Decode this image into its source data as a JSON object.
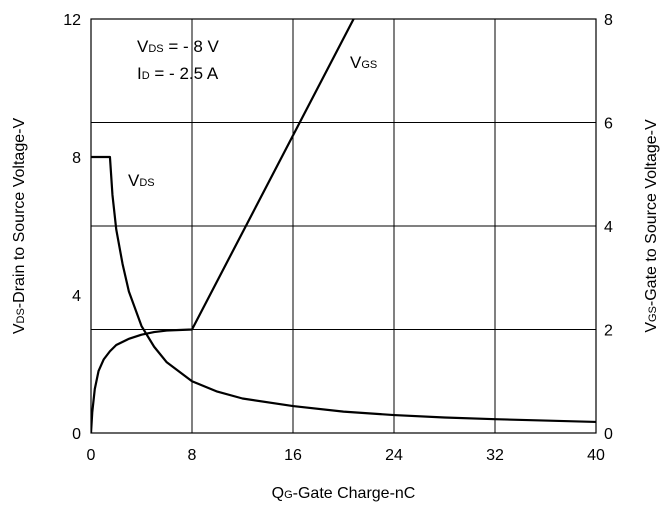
{
  "chart_data": {
    "type": "line",
    "x_axis": {
      "ticks": [
        "0",
        "8",
        "16",
        "24",
        "32",
        "40"
      ],
      "range": [
        0,
        40
      ],
      "label_main": "Q",
      "label_sub": "G",
      "label_rest": "-Gate Charge-nC"
    },
    "y_left": {
      "ticks": [
        "0",
        "4",
        "8",
        "12"
      ],
      "range": [
        0,
        12
      ],
      "label_main": "V",
      "label_sub": "DS",
      "label_rest": "-Drain to Source Voltage-V"
    },
    "y_right": {
      "ticks": [
        "0",
        "2",
        "4",
        "6",
        "8"
      ],
      "range": [
        0,
        8
      ],
      "label_main": "V",
      "label_sub": "GS",
      "label_rest": "-Gate to Source Voltage-V"
    },
    "grid": true,
    "conditions": [
      {
        "main": "V",
        "sub": "DS",
        "rest": " =  - 8 V"
      },
      {
        "main": "I",
        "sub": "D",
        "rest": " =  - 2.5 A"
      }
    ],
    "series": [
      {
        "name_main": "V",
        "name_sub": "DS",
        "axis": "left",
        "x": [
          0,
          1.5,
          1.5,
          1.7,
          2,
          2.5,
          3,
          4,
          5,
          6,
          8,
          10,
          12,
          16,
          20,
          24,
          28,
          32,
          36,
          40
        ],
        "y": [
          8,
          8,
          8,
          6.9,
          5.9,
          4.9,
          4.1,
          3.1,
          2.5,
          2.05,
          1.5,
          1.2,
          1.0,
          0.78,
          0.62,
          0.52,
          0.45,
          0.4,
          0.36,
          0.32
        ]
      },
      {
        "name_main": "V",
        "name_sub": "GS",
        "axis": "right",
        "x": [
          0,
          0.1,
          0.3,
          0.6,
          1,
          1.5,
          2,
          3,
          4,
          5,
          6,
          7,
          8,
          20.8
        ],
        "y": [
          0,
          0.4,
          0.85,
          1.2,
          1.42,
          1.58,
          1.7,
          1.82,
          1.9,
          1.95,
          1.98,
          1.99,
          2.0,
          8
        ]
      }
    ]
  }
}
